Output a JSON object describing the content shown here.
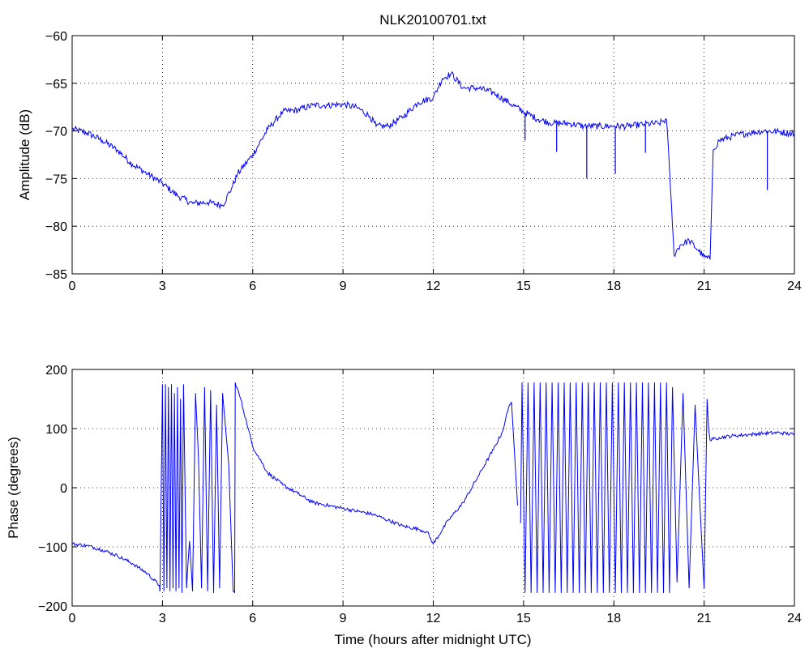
{
  "chart_data": [
    {
      "type": "line",
      "title": "NLK20100701.txt",
      "xlabel": "",
      "ylabel": "Amplitude (dB)",
      "xlim": [
        0,
        24
      ],
      "ylim": [
        -85,
        -60
      ],
      "grid": true,
      "x_ticks": [
        "0",
        "3",
        "6",
        "9",
        "12",
        "15",
        "18",
        "21",
        "24"
      ],
      "y_ticks": [
        "−60",
        "−65",
        "−70",
        "−75",
        "−80",
        "−85"
      ],
      "line_color": "#0000ff",
      "series": [
        {
          "x": [
            0,
            0.5,
            1,
            1.5,
            2,
            2.5,
            3,
            3.5,
            4,
            4.5,
            5,
            5.3,
            5.5,
            6,
            6.5,
            7,
            7.5,
            8,
            8.5,
            9,
            9.5,
            9.9,
            10.1,
            10.5,
            11,
            11.5,
            12,
            12.3,
            12.6,
            13,
            13.5,
            14,
            14.5,
            15,
            15.5,
            16,
            16.5,
            17,
            17.5,
            18,
            18.5,
            19,
            19.5,
            19.75,
            19.85,
            19.95,
            20.0,
            20.2,
            20.5,
            20.8,
            21.0,
            21.2,
            21.3,
            21.5,
            22,
            22.5,
            23,
            23.5,
            24
          ],
          "y": [
            -69.8,
            -70.2,
            -71,
            -72,
            -73.5,
            -74.5,
            -75.5,
            -76.8,
            -77.6,
            -77.5,
            -77.8,
            -76,
            -74.5,
            -72.5,
            -69.8,
            -68,
            -67.8,
            -67.3,
            -67.3,
            -67.2,
            -67.6,
            -68.5,
            -69.5,
            -69.5,
            -68.5,
            -67,
            -66.5,
            -64.5,
            -64,
            -65.5,
            -65.5,
            -66,
            -67,
            -68,
            -68.8,
            -69.2,
            -69.2,
            -69.5,
            -69.5,
            -69.5,
            -69.5,
            -69.3,
            -69.2,
            -68.8,
            -74,
            -80,
            -83,
            -82,
            -81.5,
            -82.5,
            -83.2,
            -83.5,
            -72,
            -71,
            -70.5,
            -70.2,
            -70,
            -70.1,
            -70.3
          ]
        }
      ],
      "spikes": [
        {
          "x": 15.05,
          "y": -71
        },
        {
          "x": 16.1,
          "y": -72.2
        },
        {
          "x": 17.1,
          "y": -75
        },
        {
          "x": 18.05,
          "y": -74.5
        },
        {
          "x": 19.05,
          "y": -72.3
        },
        {
          "x": 23.1,
          "y": -76.2
        }
      ]
    },
    {
      "type": "line",
      "title": "",
      "xlabel": "Time (hours after midnight UTC)",
      "ylabel": "Phase (degrees)",
      "xlim": [
        0,
        24
      ],
      "ylim": [
        -200,
        200
      ],
      "grid": true,
      "x_ticks": [
        "0",
        "3",
        "6",
        "9",
        "12",
        "15",
        "18",
        "21",
        "24"
      ],
      "y_ticks": [
        "200",
        "100",
        "0",
        "−100",
        "−200"
      ],
      "line_color": "#0000ff",
      "series": [
        {
          "x": [
            0,
            0.5,
            1,
            1.5,
            2,
            2.5,
            2.9,
            2.92,
            3.0,
            3.05,
            3.1,
            3.15,
            3.2,
            3.25,
            3.3,
            3.35,
            3.4,
            3.45,
            3.5,
            3.55,
            3.6,
            3.65,
            3.7,
            3.8,
            3.9,
            4.0,
            4.1,
            4.2,
            4.3,
            4.4,
            4.5,
            4.6,
            4.7,
            4.8,
            4.9,
            5.0,
            5.1,
            5.2,
            5.35,
            5.4,
            5.42,
            5.6,
            5.8,
            6,
            6.5,
            7,
            7.5,
            8,
            8.5,
            9,
            9.5,
            10,
            10.5,
            11,
            11.5,
            11.8,
            12,
            12.5,
            13,
            13.5,
            14,
            14.3,
            14.4,
            14.5,
            14.6,
            14.8
          ],
          "y": [
            -95,
            -98,
            -105,
            -115,
            -128,
            -145,
            -165,
            -175,
            175,
            -175,
            175,
            -170,
            170,
            -175,
            175,
            -170,
            160,
            -175,
            170,
            -170,
            150,
            -178,
            175,
            -170,
            -90,
            -175,
            160,
            50,
            -170,
            170,
            -175,
            165,
            -178,
            140,
            -170,
            160,
            100,
            40,
            -175,
            -178,
            178,
            150,
            110,
            70,
            25,
            5,
            -10,
            -25,
            -30,
            -35,
            -40,
            -45,
            -55,
            -65,
            -70,
            -75,
            -95,
            -55,
            -25,
            20,
            65,
            95,
            115,
            135,
            145,
            -30
          ]
        },
        {
          "x": [
            14.9,
            14.95,
            15.05,
            15.15,
            15.25,
            15.35,
            15.45,
            15.55,
            15.65,
            15.75,
            15.85,
            15.95,
            16.05,
            16.15,
            16.25,
            16.35,
            16.45,
            16.55,
            16.65,
            16.75,
            16.85,
            16.95,
            17.05,
            17.15,
            17.25,
            17.35,
            17.45,
            17.55,
            17.65,
            17.75,
            17.85,
            17.95,
            18.05,
            18.15,
            18.25,
            18.35,
            18.45,
            18.55,
            18.65,
            18.75,
            18.85,
            18.95,
            19.05,
            19.15,
            19.25,
            19.35,
            19.45,
            19.55,
            19.65,
            19.75,
            19.85,
            19.95,
            20.1,
            20.3,
            20.5,
            20.7,
            20.85,
            21.0,
            21.1,
            21.15,
            21.2,
            21.3,
            21.5,
            22,
            22.5,
            23,
            23.5,
            24
          ],
          "y": [
            -60,
            178,
            -178,
            178,
            -178,
            178,
            -178,
            178,
            -178,
            178,
            -178,
            178,
            -178,
            178,
            -178,
            178,
            -178,
            178,
            -178,
            178,
            -178,
            178,
            -178,
            178,
            -178,
            178,
            -178,
            178,
            -178,
            178,
            -178,
            178,
            -178,
            178,
            -178,
            178,
            -178,
            178,
            -178,
            178,
            -178,
            178,
            -178,
            178,
            -178,
            178,
            -178,
            178,
            -178,
            178,
            -178,
            170,
            -160,
            160,
            -170,
            140,
            -20,
            -170,
            150,
            100,
            80,
            82,
            85,
            88,
            90,
            92,
            93,
            90
          ]
        }
      ]
    }
  ]
}
